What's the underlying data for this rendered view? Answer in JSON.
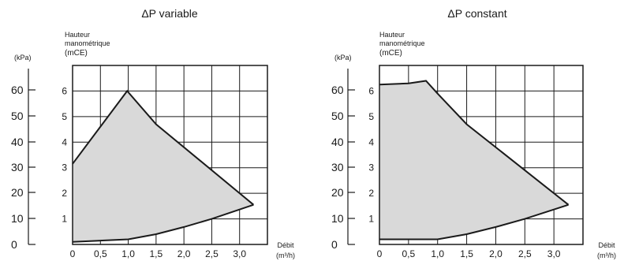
{
  "chart_data": [
    {
      "type": "area",
      "title": "ΔP variable",
      "ylabel_lines": [
        "Hauteur",
        "manométrique",
        "(mCE)"
      ],
      "y2label": "(kPa)",
      "xlabel": "Débit",
      "xunit": "(m³/h)",
      "xlim": [
        0,
        3.5
      ],
      "ylim": [
        0,
        7
      ],
      "x_ticks": [
        "0",
        "0,5",
        "1,0",
        "1,5",
        "2,0",
        "2,5",
        "3,0"
      ],
      "y_ticks": [
        "1",
        "2",
        "3",
        "4",
        "5",
        "6"
      ],
      "kpa_ticks": [
        "0",
        "10",
        "20",
        "30",
        "40",
        "50",
        "60"
      ],
      "grid": true,
      "max_curve": {
        "x": [
          0,
          0.98,
          1.5,
          3.25
        ],
        "y": [
          3.15,
          6.0,
          4.7,
          1.55
        ]
      },
      "min_curve": {
        "x": [
          0,
          1.0,
          1.5,
          2.0,
          2.5,
          3.25
        ],
        "y": [
          0.1,
          0.2,
          0.4,
          0.68,
          1.0,
          1.55
        ]
      }
    },
    {
      "type": "area",
      "title": "ΔP constant",
      "ylabel_lines": [
        "Hauteur",
        "manométrique",
        "(mCE)"
      ],
      "y2label": "(kPa)",
      "xlabel": "Débit",
      "xunit": "(m³/h)",
      "xlim": [
        0,
        3.5
      ],
      "ylim": [
        0,
        7
      ],
      "x_ticks": [
        "0",
        "0,5",
        "1,0",
        "1,5",
        "2,0",
        "2,5",
        "3,0"
      ],
      "y_ticks": [
        "1",
        "2",
        "3",
        "4",
        "5",
        "6"
      ],
      "kpa_ticks": [
        "0",
        "10",
        "20",
        "30",
        "40",
        "50",
        "60"
      ],
      "grid": true,
      "max_curve": {
        "x": [
          0,
          0.5,
          0.8,
          1.0,
          1.5,
          3.25
        ],
        "y": [
          6.25,
          6.3,
          6.4,
          5.9,
          4.7,
          1.55
        ]
      },
      "min_curve": {
        "x": [
          0,
          1.0,
          1.5,
          2.0,
          2.5,
          3.25
        ],
        "y": [
          0.2,
          0.2,
          0.4,
          0.68,
          1.0,
          1.55
        ]
      }
    }
  ]
}
